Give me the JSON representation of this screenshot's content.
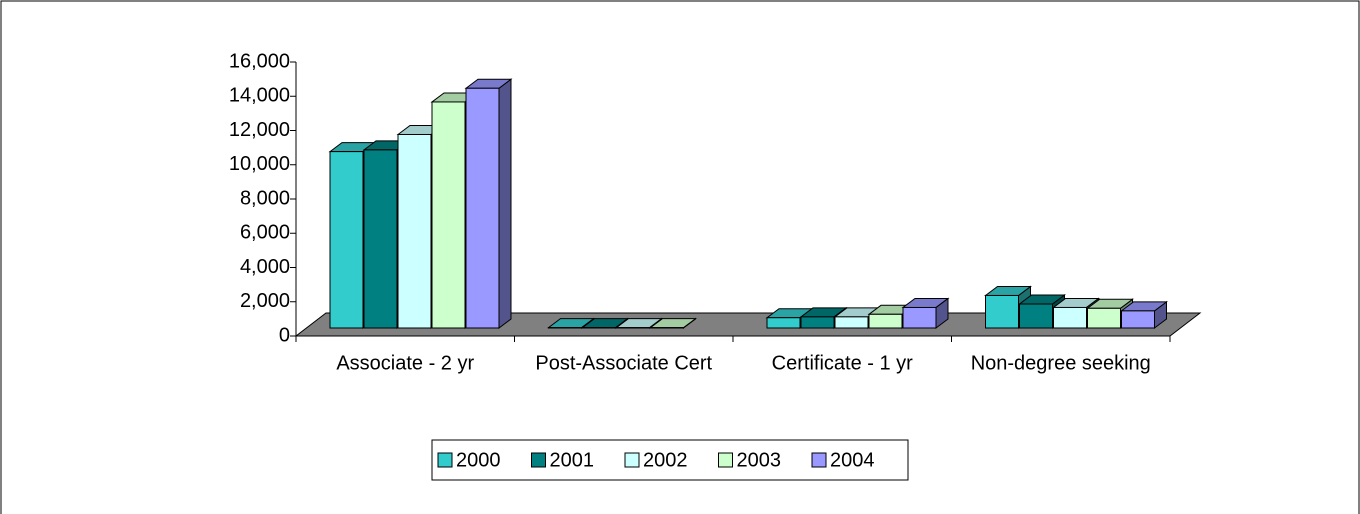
{
  "chart_data": {
    "type": "bar3d",
    "categories": [
      "Associate - 2 yr",
      "Post-Associate Cert",
      "Certificate - 1 yr",
      "Non-degree seeking"
    ],
    "series": [
      {
        "name": "2000",
        "color": "#33cccc",
        "values": [
          10300,
          20,
          600,
          1900
        ]
      },
      {
        "name": "2001",
        "color": "#008080",
        "values": [
          10400,
          20,
          650,
          1400
        ]
      },
      {
        "name": "2002",
        "color": "#ccffff",
        "values": [
          11300,
          20,
          650,
          1200
        ]
      },
      {
        "name": "2003",
        "color": "#ccffcc",
        "values": [
          13200,
          20,
          800,
          1150
        ]
      },
      {
        "name": "2004",
        "color": "#9999ff",
        "values": [
          14000,
          null,
          1200,
          1000
        ]
      }
    ],
    "ylim": [
      0,
      16000
    ],
    "yticks": [
      {
        "value": 0,
        "label": "0"
      },
      {
        "value": 2000,
        "label": "2,000"
      },
      {
        "value": 4000,
        "label": "4,000"
      },
      {
        "value": 6000,
        "label": "6,000"
      },
      {
        "value": 8000,
        "label": "8,000"
      },
      {
        "value": 10000,
        "label": "10,000"
      },
      {
        "value": 12000,
        "label": "12,000"
      },
      {
        "value": 14000,
        "label": "14,000"
      },
      {
        "value": 16000,
        "label": "16,000"
      }
    ],
    "legend": "bottom"
  }
}
